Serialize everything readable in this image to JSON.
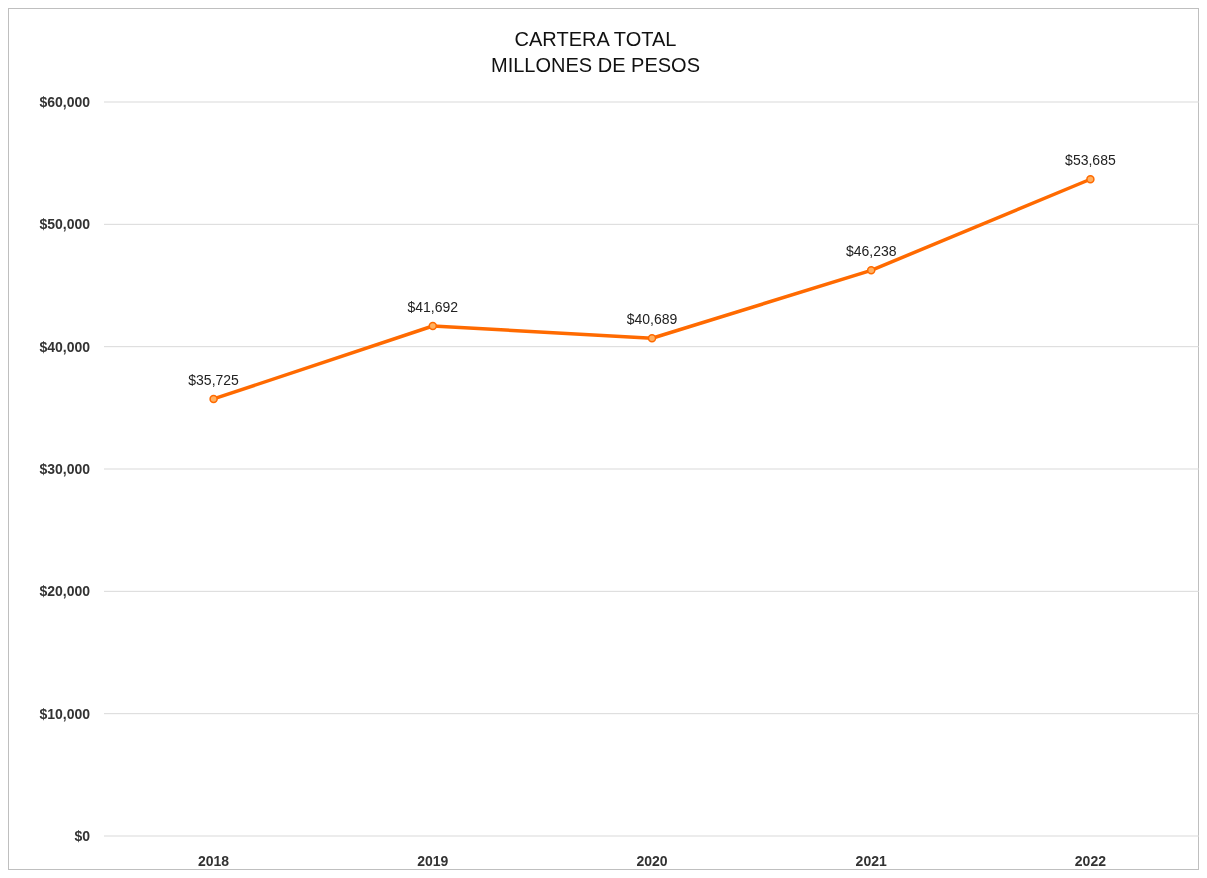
{
  "chart_data": {
    "type": "line",
    "title": "CARTERA TOTAL",
    "subtitle": "MILLONES DE PESOS",
    "categories": [
      "2018",
      "2019",
      "2020",
      "2021",
      "2022"
    ],
    "series": [
      {
        "color": "#ff6a00",
        "values": [
          35725,
          41692,
          40689,
          46238,
          53685
        ],
        "value_labels": [
          "$35,725",
          "$41,692",
          "$40,689",
          "$46,238",
          "$53,685"
        ]
      }
    ],
    "ylim": [
      0,
      60000
    ],
    "yticks": [
      {
        "value": 0,
        "label": "$0"
      },
      {
        "value": 10000,
        "label": "$10,000"
      },
      {
        "value": 20000,
        "label": "$20,000"
      },
      {
        "value": 30000,
        "label": "$30,000"
      },
      {
        "value": 40000,
        "label": "$40,000"
      },
      {
        "value": 50000,
        "label": "$50,000"
      },
      {
        "value": 60000,
        "label": "$60,000"
      }
    ],
    "grid": "y",
    "marker": "circle",
    "line_style": "solid"
  }
}
